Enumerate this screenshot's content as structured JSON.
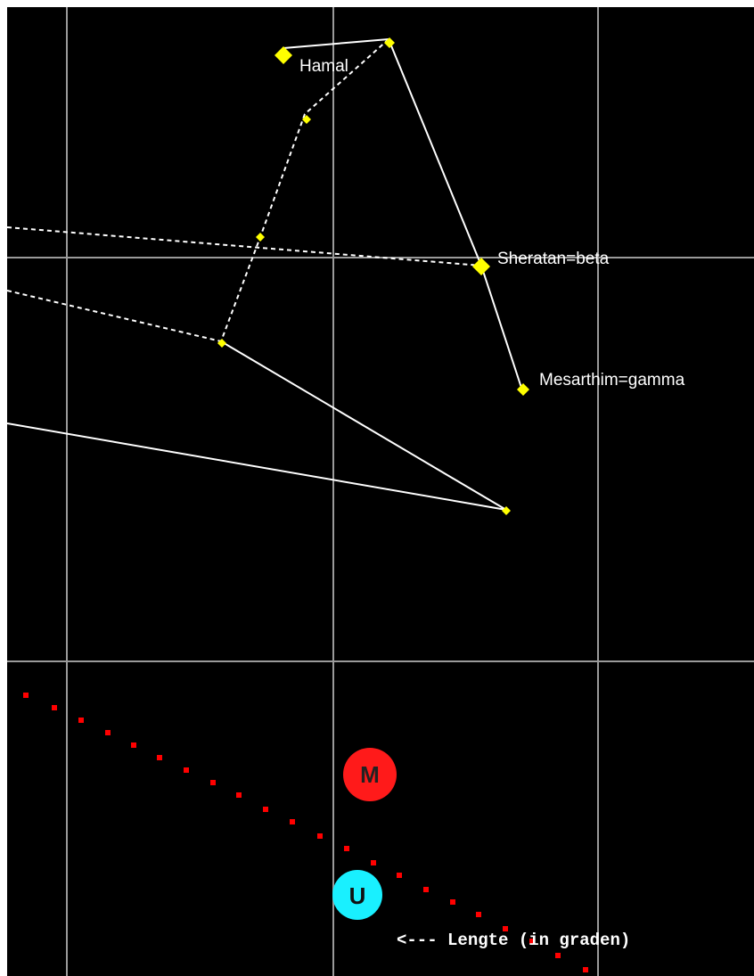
{
  "star_labels": {
    "hamal": "Hamal",
    "sheratan": "Sheratan=beta",
    "mesarthim": "Mesarthim=gamma"
  },
  "planets": {
    "mars": {
      "letter": "M",
      "color": "#ff1a1a",
      "letter_color": "#222222"
    },
    "uranus": {
      "letter": "U",
      "color": "#19f0ff",
      "letter_color": "#111111"
    }
  },
  "ecliptic_label": "<--- Lengte (in graden)",
  "colors": {
    "background": "#000000",
    "grid": "#9a9a9a",
    "lines": "#ffffff",
    "stars": "#ffff00",
    "ecliptic": "#ff0000"
  }
}
